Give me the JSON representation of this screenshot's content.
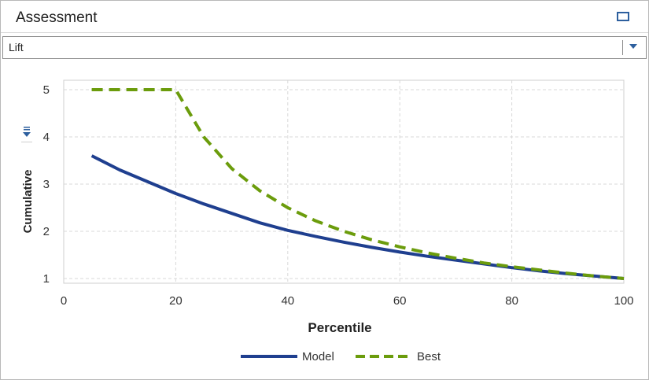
{
  "panel": {
    "title": "Assessment",
    "dropdown_value": "Lift",
    "icons": {
      "maximize": "maximize-icon",
      "dropdown_caret": "chevron-down-icon",
      "axis_menu": "axis-menu-icon"
    }
  },
  "chart_data": {
    "type": "line",
    "xlabel": "Percentile",
    "ylabel": "Cumulative",
    "xlim": [
      0,
      100
    ],
    "ylim": [
      0.9,
      5.2
    ],
    "xticks": [
      0,
      20,
      40,
      60,
      80,
      100
    ],
    "yticks": [
      1,
      2,
      3,
      4,
      5
    ],
    "grid": true,
    "legend_position": "bottom-center",
    "series": [
      {
        "name": "Model",
        "color": "#1f3f8f",
        "style": "solid",
        "x": [
          5,
          10,
          15,
          20,
          25,
          30,
          35,
          40,
          45,
          50,
          55,
          60,
          65,
          70,
          75,
          80,
          85,
          90,
          95,
          100
        ],
        "y": [
          3.6,
          3.3,
          3.05,
          2.8,
          2.58,
          2.38,
          2.18,
          2.02,
          1.89,
          1.77,
          1.66,
          1.56,
          1.47,
          1.39,
          1.31,
          1.23,
          1.16,
          1.1,
          1.05,
          1.0
        ]
      },
      {
        "name": "Best",
        "color": "#6b9c0c",
        "style": "dashed",
        "x": [
          5,
          10,
          15,
          20,
          25,
          30,
          35,
          40,
          45,
          50,
          55,
          60,
          65,
          70,
          75,
          80,
          85,
          90,
          95,
          100
        ],
        "y": [
          5.0,
          5.0,
          5.0,
          5.0,
          4.0,
          3.33,
          2.86,
          2.5,
          2.22,
          2.0,
          1.82,
          1.67,
          1.54,
          1.43,
          1.33,
          1.25,
          1.18,
          1.11,
          1.05,
          1.0
        ]
      }
    ]
  }
}
